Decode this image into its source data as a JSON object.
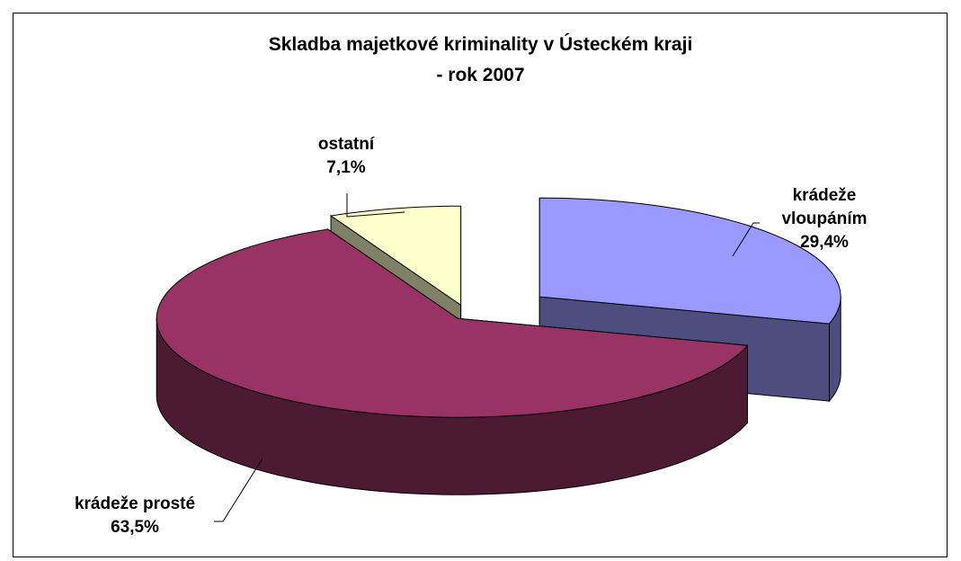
{
  "chart_data": {
    "type": "pie",
    "title": [
      "Skladba majetkové kriminality v Ústeckém kraji",
      "- rok 2007"
    ],
    "categories": [
      "krádeže vloupáním",
      "krádeže prosté",
      "ostatní"
    ],
    "values": [
      29.4,
      63.5,
      7.1
    ],
    "value_labels": [
      "29,4%",
      "63,5%",
      "7,1%"
    ],
    "colors": [
      "#9999ff",
      "#993366",
      "#ffffcc"
    ]
  }
}
